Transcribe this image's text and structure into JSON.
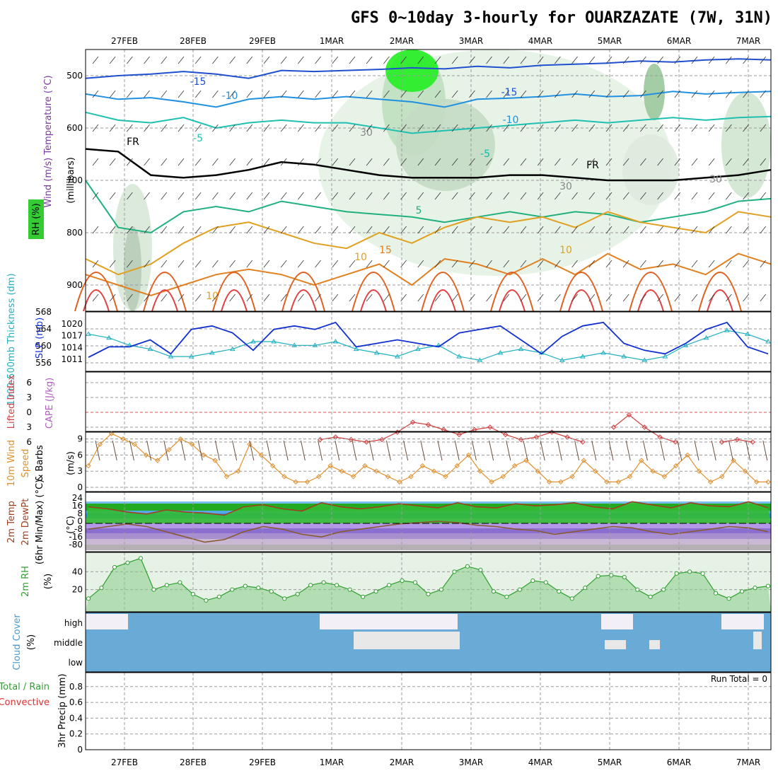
{
  "chart_data": {
    "type": "meteogram",
    "title": "GFS 0~10day 3-hourly for OUARZAZATE (7W, 31N)",
    "dates": [
      "27FEB",
      "28FEB",
      "29FEB",
      "1MAR",
      "2MAR",
      "3MAR",
      "4MAR",
      "5MAR",
      "6MAR",
      "7MAR"
    ],
    "upper_panel": {
      "ylabels": [
        "Wind (m/s)",
        "Temperature (°C)",
        "RH (%)"
      ],
      "axis_label": "(millibars)",
      "pressure_ticks": [
        500,
        600,
        700,
        800,
        900
      ],
      "ylim": [
        450,
        950
      ],
      "isotherms": [
        {
          "label": "-15",
          "color": "#2050d0",
          "y": [
            505,
            500,
            497,
            492,
            497,
            505,
            490,
            492,
            490,
            488,
            485,
            487,
            482,
            485,
            480,
            478,
            476,
            472,
            474,
            470,
            468,
            470
          ]
        },
        {
          "label": "-10",
          "color": "#2090e0",
          "y": [
            535,
            545,
            542,
            550,
            560,
            545,
            540,
            545,
            540,
            545,
            550,
            560,
            545,
            543,
            540,
            535,
            540,
            538,
            530,
            535,
            532,
            530
          ]
        },
        {
          "label": "-5",
          "color": "#20c0b0",
          "y": [
            570,
            585,
            590,
            580,
            600,
            590,
            585,
            590,
            590,
            600,
            610,
            605,
            600,
            595,
            590,
            585,
            590,
            585,
            580,
            585,
            580,
            578
          ]
        },
        {
          "label": "FR",
          "color": "#000000",
          "y": [
            640,
            645,
            690,
            695,
            690,
            680,
            665,
            670,
            680,
            690,
            695,
            695,
            695,
            690,
            690,
            695,
            700,
            700,
            700,
            695,
            690,
            680
          ]
        },
        {
          "label": "5",
          "color": "#20b080",
          "y": [
            700,
            790,
            800,
            760,
            750,
            760,
            740,
            750,
            760,
            765,
            770,
            780,
            770,
            760,
            770,
            760,
            765,
            780,
            770,
            760,
            740,
            735
          ]
        },
        {
          "label": "10",
          "color": "#e0a020",
          "y": [
            850,
            880,
            860,
            820,
            790,
            780,
            800,
            820,
            830,
            800,
            820,
            790,
            770,
            780,
            770,
            790,
            760,
            780,
            790,
            800,
            760,
            770
          ]
        },
        {
          "label": "15",
          "color": "#e08020",
          "y": [
            880,
            900,
            920,
            900,
            880,
            870,
            880,
            900,
            880,
            860,
            900,
            850,
            860,
            880,
            850,
            880,
            840,
            870,
            860,
            880,
            840,
            860
          ]
        }
      ],
      "contour_labels": [
        "-15",
        "-10",
        "-5",
        "FR",
        "5",
        "10",
        "15",
        "10",
        "10",
        "-15",
        "-10",
        "-5",
        "-5",
        "30",
        "30",
        "30",
        "FR"
      ]
    },
    "thickness_slp_panel": {
      "ylabels": [
        "1000-500mb Thickness (dm)",
        "SLP (mb)"
      ],
      "thickness_ticks": [
        556,
        560,
        564,
        568
      ],
      "slp_ticks": [
        1011,
        1014,
        1017,
        1020
      ],
      "slp": [
        1011,
        1014,
        1014,
        1016,
        1012,
        1019,
        1020,
        1018,
        1013,
        1019,
        1020,
        1019,
        1021,
        1014,
        1015,
        1016,
        1015,
        1014,
        1018,
        1019,
        1020,
        1016,
        1012,
        1017,
        1020,
        1021,
        1015,
        1013,
        1012,
        1015,
        1019,
        1021,
        1014,
        1012
      ],
      "thickness": [
        563,
        562,
        560,
        559,
        557,
        557,
        558,
        559,
        561,
        561,
        560,
        560,
        561,
        559,
        558,
        557,
        559,
        560,
        557,
        556,
        558,
        559,
        558,
        556,
        557,
        558,
        557,
        556,
        557,
        560,
        562,
        564,
        563,
        561
      ]
    },
    "cape_li_panel": {
      "ylabels": [
        "Lifted Index",
        "CAPE (J/kg)"
      ],
      "li_ticks": [
        "6",
        "3",
        "0",
        "3",
        "6"
      ],
      "lifted_index": [
        null,
        null,
        null,
        null,
        null,
        null,
        null,
        null,
        null,
        null,
        null,
        null,
        null,
        null,
        null,
        5.5,
        5,
        5.5,
        6,
        5.5,
        4,
        2,
        2.5,
        3.5,
        4.5,
        3.5,
        3,
        4.5,
        5.5,
        5,
        4,
        5,
        6,
        null,
        3,
        0.5,
        3,
        5,
        6,
        null,
        null,
        6,
        5.5,
        6,
        null
      ]
    },
    "wind10m_panel": {
      "ylabels": [
        "10m Wind Speed & Barbs (m/s)"
      ],
      "ticks": [
        0,
        3,
        6,
        9
      ],
      "speed": [
        4,
        8,
        10,
        9,
        8,
        6,
        5,
        7,
        9,
        8,
        6,
        5,
        2,
        3,
        8,
        6,
        4,
        2,
        1,
        1,
        2,
        4,
        3,
        2,
        4,
        3,
        2,
        1,
        2,
        4,
        3,
        2,
        4,
        6,
        3,
        1,
        2,
        4,
        5,
        3,
        1,
        1,
        2,
        5,
        3,
        1,
        1,
        2,
        5,
        3,
        2,
        4,
        6,
        3,
        1,
        2,
        5,
        3,
        1,
        1
      ]
    },
    "temp_panel": {
      "ylabels": [
        "2m Temp",
        "2m DewPt",
        "(6hr Min/Max) (°C)"
      ],
      "ticks": [
        "24",
        "16",
        "8",
        "0",
        "-8",
        "-16",
        "-80"
      ],
      "temp": [
        16,
        14,
        11,
        9,
        13,
        11,
        10,
        8,
        16,
        18,
        14,
        12,
        20,
        16,
        14,
        16,
        19,
        17,
        15,
        20,
        16,
        15,
        19,
        17,
        18,
        20,
        16,
        14,
        21,
        18,
        15,
        20,
        17,
        16,
        21,
        15
      ],
      "dewpt": [
        -8,
        -6,
        -4,
        -6,
        -10,
        -14,
        -18,
        -16,
        -10,
        -6,
        -8,
        -12,
        -14,
        -10,
        -8,
        -6,
        -4,
        -3,
        -2,
        -3,
        -5,
        -6,
        -8,
        -9,
        -12,
        -10,
        -8,
        -6,
        -7,
        -10,
        -12,
        -10,
        -8,
        -6,
        -7,
        -10
      ]
    },
    "rh_panel": {
      "ylabels": [
        "2m RH",
        "(%)"
      ],
      "ticks": [
        20,
        40
      ],
      "rh": [
        10,
        22,
        45,
        50,
        55,
        20,
        25,
        28,
        15,
        8,
        12,
        20,
        24,
        22,
        18,
        10,
        15,
        25,
        28,
        25,
        20,
        12,
        18,
        25,
        30,
        28,
        15,
        20,
        40,
        46,
        42,
        18,
        12,
        20,
        30,
        28,
        18,
        10,
        22,
        35,
        36,
        34,
        20,
        12,
        20,
        38,
        40,
        38,
        16,
        10,
        18,
        22,
        24
      ]
    },
    "cloud_panel": {
      "ylabels": [
        "Cloud Cover",
        "(%)"
      ],
      "levels": [
        "high",
        "middle",
        "low"
      ]
    },
    "precip_panel": {
      "ylabels": [
        "Total / Rain",
        "Convective",
        "3hr Precip (mm)"
      ],
      "ticks": [
        "0",
        "0.2",
        "0.4",
        "0.6",
        "0.8"
      ],
      "run_total": "Run Total = 0"
    },
    "colors": {
      "slp": "#1030d0",
      "thickness": "#20b0c0",
      "li": "#d04040",
      "wind": "#e09030",
      "rh": "#30a030",
      "cloud": "#6aaad6",
      "cloud_clear": "#f2f0f6",
      "cloud_mid": "#e8e8e8",
      "temp_line": "#a04020",
      "dew": "#8a5a30"
    }
  }
}
